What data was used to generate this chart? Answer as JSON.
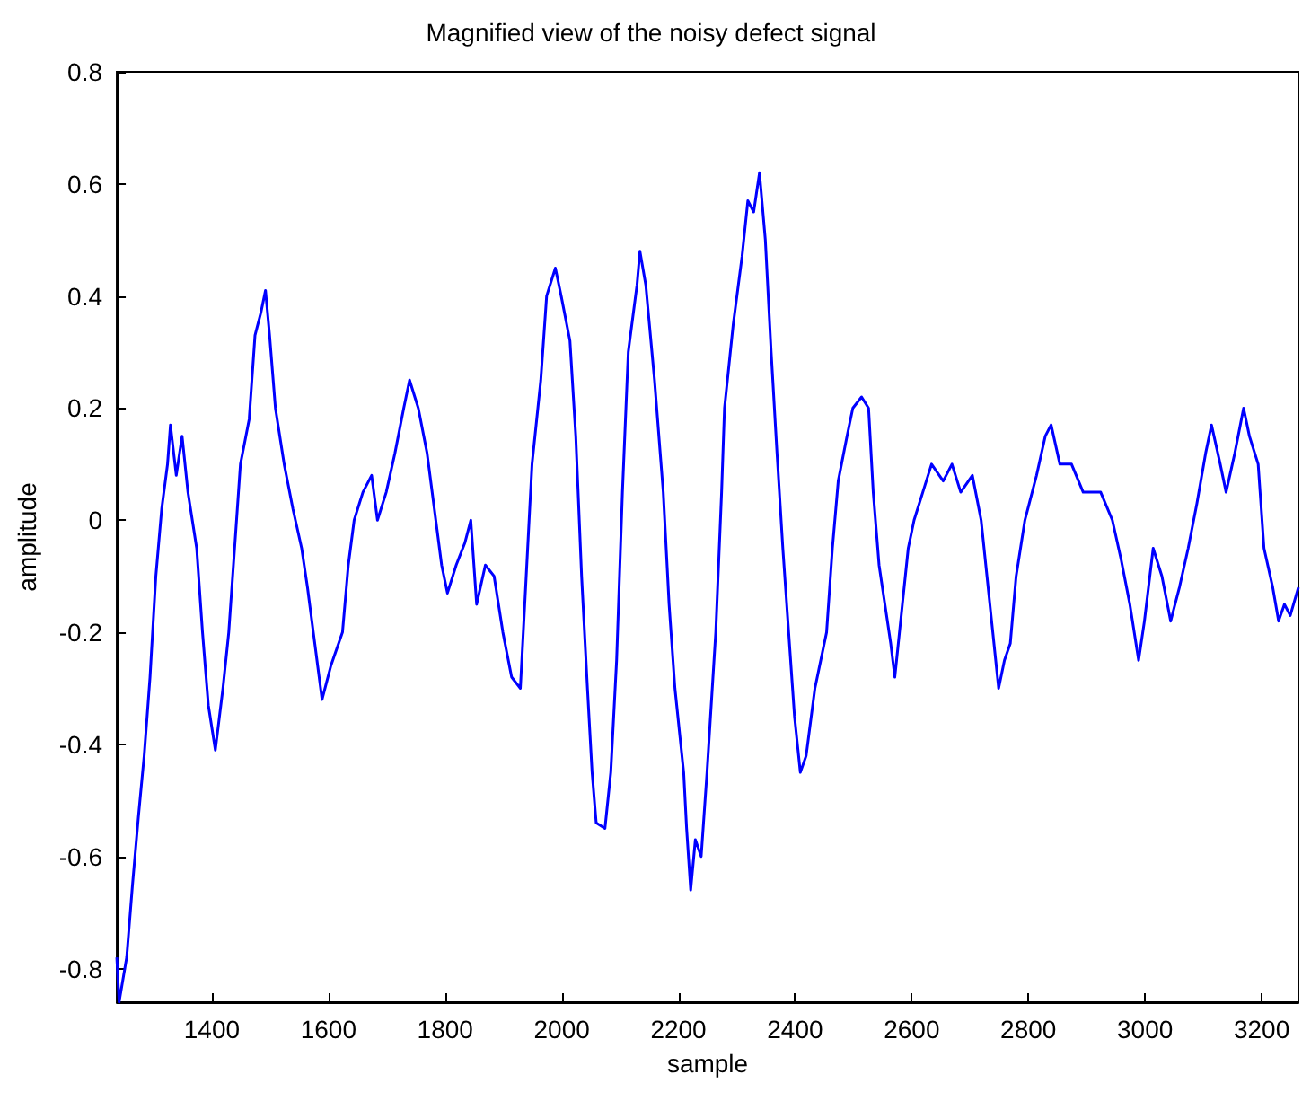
{
  "chart_data": {
    "type": "line",
    "title": "Magnified view of the noisy defect signal",
    "xlabel": "sample",
    "ylabel": "amplitude",
    "x": [
      1237,
      1241,
      1254,
      1264,
      1274,
      1284,
      1294,
      1304,
      1314,
      1324,
      1329,
      1339,
      1349,
      1359,
      1374,
      1384,
      1394,
      1406,
      1419,
      1429,
      1439,
      1449,
      1464,
      1474,
      1484,
      1492,
      1499,
      1509,
      1524,
      1539,
      1554,
      1564,
      1574,
      1584,
      1589,
      1604,
      1624,
      1634,
      1644,
      1659,
      1674,
      1684,
      1699,
      1714,
      1729,
      1739,
      1754,
      1769,
      1784,
      1794,
      1804,
      1819,
      1834,
      1844,
      1854,
      1869,
      1884,
      1899,
      1914,
      1929,
      1939,
      1949,
      1964,
      1974,
      1989,
      1999,
      2014,
      2024,
      2034,
      2044,
      2052,
      2059,
      2074,
      2084,
      2094,
      2104,
      2114,
      2129,
      2134,
      2144,
      2159,
      2174,
      2184,
      2194,
      2209,
      2214,
      2221,
      2229,
      2239,
      2249,
      2264,
      2274,
      2279,
      2294,
      2309,
      2319,
      2329,
      2339,
      2349,
      2359,
      2369,
      2379,
      2389,
      2399,
      2409,
      2419,
      2434,
      2454,
      2464,
      2474,
      2489,
      2499,
      2514,
      2526,
      2534,
      2544,
      2554,
      2564,
      2571,
      2584,
      2594,
      2604,
      2619,
      2634,
      2654,
      2669,
      2684,
      2704,
      2719,
      2729,
      2739,
      2749,
      2759,
      2769,
      2779,
      2794,
      2814,
      2829,
      2839,
      2854,
      2874,
      2894,
      2924,
      2944,
      2959,
      2974,
      2989,
      2999,
      3014,
      3029,
      3044,
      3059,
      3074,
      3089,
      3104,
      3114,
      3129,
      3139,
      3154,
      3169,
      3179,
      3194,
      3204,
      3219,
      3229,
      3239,
      3249,
      3263
    ],
    "series": [
      {
        "color": "#0000ff",
        "values": [
          -0.78,
          -0.86,
          -0.78,
          -0.65,
          -0.53,
          -0.42,
          -0.28,
          -0.1,
          0.02,
          0.1,
          0.17,
          0.08,
          0.15,
          0.05,
          -0.05,
          -0.2,
          -0.33,
          -0.41,
          -0.3,
          -0.2,
          -0.05,
          0.1,
          0.18,
          0.33,
          0.37,
          0.41,
          0.33,
          0.2,
          0.1,
          0.02,
          -0.05,
          -0.12,
          -0.2,
          -0.28,
          -0.32,
          -0.26,
          -0.2,
          -0.08,
          0,
          0.05,
          0.08,
          0,
          0.05,
          0.12,
          0.2,
          0.25,
          0.2,
          0.12,
          0,
          -0.08,
          -0.13,
          -0.08,
          -0.04,
          0,
          -0.15,
          -0.08,
          -0.1,
          -0.2,
          -0.28,
          -0.3,
          -0.1,
          0.1,
          0.25,
          0.4,
          0.45,
          0.4,
          0.32,
          0.15,
          -0.1,
          -0.3,
          -0.45,
          -0.54,
          -0.55,
          -0.45,
          -0.25,
          0.05,
          0.3,
          0.42,
          0.48,
          0.42,
          0.25,
          0.05,
          -0.15,
          -0.3,
          -0.45,
          -0.55,
          -0.66,
          -0.57,
          -0.6,
          -0.45,
          -0.2,
          0.05,
          0.2,
          0.35,
          0.47,
          0.57,
          0.55,
          0.62,
          0.5,
          0.3,
          0.12,
          -0.05,
          -0.2,
          -0.35,
          -0.45,
          -0.42,
          -0.3,
          -0.2,
          -0.05,
          0.07,
          0.15,
          0.2,
          0.22,
          0.2,
          0.05,
          -0.08,
          -0.15,
          -0.22,
          -0.28,
          -0.15,
          -0.05,
          0,
          0.05,
          0.1,
          0.07,
          0.1,
          0.05,
          0.08,
          0,
          -0.1,
          -0.2,
          -0.3,
          -0.25,
          -0.22,
          -0.1,
          0,
          0.08,
          0.15,
          0.17,
          0.1,
          0.1,
          0.05,
          0.05,
          0,
          -0.07,
          -0.15,
          -0.25,
          -0.18,
          -0.05,
          -0.1,
          -0.18,
          -0.12,
          -0.05,
          0.03,
          0.12,
          0.17,
          0.1,
          0.05,
          0.12,
          0.2,
          0.15,
          0.1,
          -0.05,
          -0.12,
          -0.18,
          -0.15,
          -0.17,
          -0.12
        ]
      }
    ],
    "xlim": [
      1237,
      3263
    ],
    "xticks": [
      1400,
      1600,
      1800,
      2000,
      2200,
      2400,
      2600,
      2800,
      3000,
      3200
    ],
    "ylim": [
      -0.86,
      0.8
    ],
    "yticks": [
      -0.8,
      -0.6,
      -0.4,
      -0.2,
      0,
      0.2,
      0.4,
      0.6,
      0.8
    ],
    "grid": false,
    "marker": "none",
    "line_style": "solid"
  }
}
